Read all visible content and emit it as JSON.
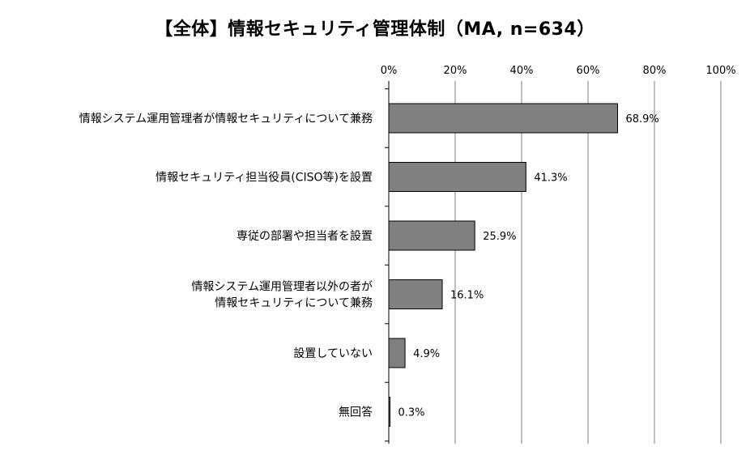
{
  "chart_data": {
    "type": "bar",
    "orientation": "horizontal",
    "title": "【全体】情報セキュリティ管理体制（MA, n=634）",
    "categories": [
      [
        "情報システム運用管理者が情報セキュリティについて兼務"
      ],
      [
        "情報セキュリティ担当役員(CISO等)を設置"
      ],
      [
        "専従の部署や担当者を設置"
      ],
      [
        "情報システム運用管理者以外の者が",
        "情報セキュリティについて兼務"
      ],
      [
        "設置していない"
      ],
      [
        "無回答"
      ]
    ],
    "values": [
      68.9,
      41.3,
      25.9,
      16.1,
      4.9,
      0.3
    ],
    "data_labels": [
      "68.9%",
      "41.3%",
      "25.9%",
      "16.1%",
      "4.9%",
      "0.3%"
    ],
    "x_ticks": [
      "0%",
      "20%",
      "40%",
      "60%",
      "80%",
      "100%"
    ],
    "xlim": [
      0,
      100
    ],
    "xlabel": "",
    "ylabel": "",
    "grid": true,
    "legend": "none",
    "axis_position": "top",
    "bar_color": "#808080",
    "bar_border_color": "#000000",
    "grid_color": "#7f7f7f"
  }
}
